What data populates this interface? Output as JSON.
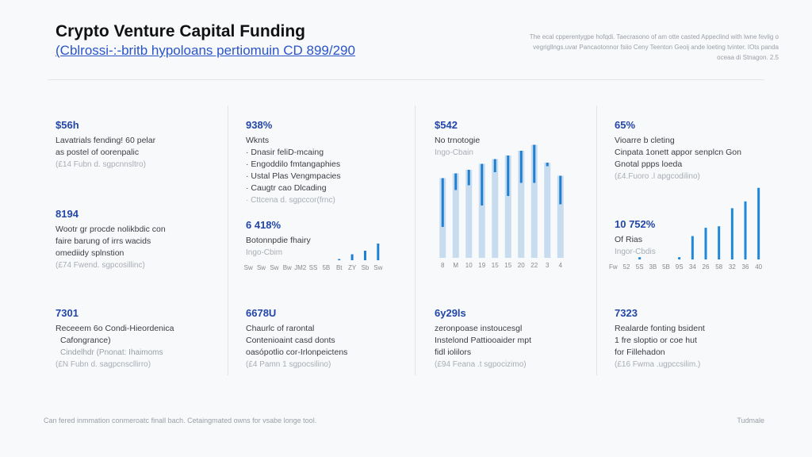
{
  "header": {
    "title": "Crypto Venture Capital Funding",
    "subtitle": "(Cblrossi-:-britb hypoloans pertiomuin CD 899/290",
    "note": "The ecal cpperentygpe hofqdi. Taecrasono of am otte casted Appeclind with lwne fevlig o vegrigllngs.uvar Pancaotonnor fsiio Ceny Teenton Geoij ande loeting tvinter. IOts panda oceaa di Stnagon. 2.5"
  },
  "columns": [
    {
      "stat": "$56h",
      "lines": [
        "Lavatrials fending! 60 pelar",
        "as postel of oorenpalic"
      ],
      "src": "(£14 Fubn d. sgpcnnsltro)",
      "stat2": "8194",
      "lines2": [
        "Wootr gr procde nolikbdic con",
        "faire barung of irrs wacids",
        "omediidy splnstion"
      ],
      "src2": "(£74 Fwend. sgpcosillinc)"
    },
    {
      "stat": "938%",
      "lines": [
        "Wknts"
      ],
      "bullets": [
        "Dnasir feliD-mcaing",
        "Engoddilo fmtangaphies",
        "Ustal Plas Vengmpacies",
        "Caugtr cao Dlcading",
        "Cttcena d. sgpccor(frnc)"
      ],
      "stat2": "6 418%",
      "lines2": [
        "Botonnpdie fhairy"
      ],
      "sub2": "Ingo-Cbim"
    },
    {
      "stat": "$542",
      "lines": [
        "No trnotogie"
      ],
      "sub": "Ingo-Cbain"
    },
    {
      "stat": "65%",
      "lines": [
        "Vioarre b cleting",
        "Cinpata 1onett appor senplcn Gon",
        "Gnotal ppps loeda"
      ],
      "src": "(£4.Fuoro .l apgcodilino)",
      "stat2": "10 752%",
      "lines2": [
        "Of Rias"
      ],
      "sub2": "Ingor-Cbdis"
    }
  ],
  "bottom": [
    {
      "stat": "7301",
      "lines": [
        "Receeem 6o Condi-Hieordenica",
        "Cafongrance)"
      ],
      "sub": "Cindelhdr (Pnonat: Ihaimoms",
      "src": "(£N Fubn d. sagpcnscllirro)"
    },
    {
      "stat": "6678U",
      "lines": [
        "Chaurlc of rarontal",
        "Contenioaint casd donts",
        "oasópotlio cor-Irlonpeictens"
      ],
      "src": "(£4 Pamn 1 sgpocsilino)"
    },
    {
      "stat": "6y29ls",
      "lines": [
        "zeronpoase instoucesgl",
        "Instelond Pattiooaider mpt",
        "fidl iolilors"
      ],
      "src": "(£94 Feana .t sgpocizimo)"
    },
    {
      "stat": "7323",
      "lines": [
        "Realarde fonting bsident",
        "1 fre sloptio or coe hut",
        "for Fillehadon"
      ],
      "src": "(£16 Fwma .ugpccsilim.)"
    }
  ],
  "footer": {
    "left": "Can fered inmmation conmeroatc finall bach. Cetaingmated owns for vsabe longe tool.",
    "right": "Tudmale"
  },
  "chart_data": [
    {
      "type": "bar",
      "title": "",
      "categories": [
        "Sw",
        "Sw",
        "Sw",
        "Bw",
        "JM2",
        "SS",
        "5B",
        "Bt",
        "ZY",
        "Sb",
        "Sw"
      ],
      "values": [
        0,
        0,
        0,
        0,
        0,
        0,
        0,
        5,
        25,
        40,
        70
      ],
      "ylim": [
        0,
        100
      ],
      "color": "#1f7fd0"
    },
    {
      "type": "bar",
      "title": "",
      "categories": [
        "8",
        "M",
        "10",
        "19",
        "15",
        "15",
        "20",
        "22",
        "3",
        "4"
      ],
      "series": [
        {
          "values": [
            67,
            71,
            74,
            79,
            83,
            86,
            90,
            95,
            80,
            69
          ]
        },
        {
          "values": [
            26,
            57,
            61,
            44,
            72,
            52,
            63,
            63,
            77,
            45
          ]
        }
      ],
      "ylim": [
        0,
        100
      ],
      "colors": [
        "#1f7fd0",
        "#c8dcf0"
      ]
    },
    {
      "type": "bar",
      "title": "",
      "categories": [
        "Fw",
        "52",
        "5S",
        "3B",
        "5B",
        "9S",
        "34",
        "26",
        "58",
        "32",
        "36",
        "40"
      ],
      "values": [
        0,
        0,
        3,
        0,
        0,
        3,
        31,
        42,
        44,
        68,
        77,
        95
      ],
      "ylim": [
        0,
        100
      ],
      "color": "#1f88d8"
    }
  ]
}
